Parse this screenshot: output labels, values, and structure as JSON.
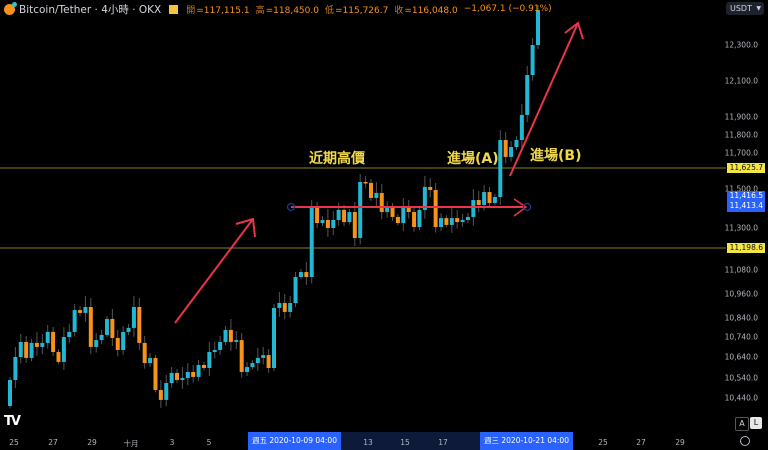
{
  "header": {
    "symbol": "Bitcoin/Tether · 4小時 · OKX",
    "open_label": "開",
    "open": "=117,115.1",
    "high_label": "高",
    "high": "=118,450.0",
    "low_label": "低",
    "low": "=115,726.7",
    "close_label": "收",
    "close": "=116,048.0",
    "change": "−1,067.1 (−0.91%)",
    "currency": "USDT"
  },
  "colors": {
    "up": "#22b8d4",
    "down": "#f7931a",
    "level_line": "#8b7e1c",
    "annotation": "#e8354a",
    "text_note": "#f0d84a",
    "crosshair_label": "#2962ff"
  },
  "y_ticks": [
    "12,300.0",
    "12,100.0",
    "11,900.0",
    "11,800.0",
    "11,700.0",
    "11,500.0",
    "11,300.0",
    "11,080.0",
    "10,960.0",
    "10,840.0",
    "10,740.0",
    "10,640.0",
    "10,540.0",
    "10,440.0"
  ],
  "price_labels": {
    "resistance": "11,625.7",
    "support": "11,198.6",
    "cross_1": "11,416.5",
    "cross_2": "11,413.4"
  },
  "x_ticks": [
    "25",
    "27",
    "29",
    "十月",
    "3",
    "5",
    "13",
    "15",
    "17",
    "25",
    "27",
    "29"
  ],
  "x_crosshair": {
    "start": "週五 2020-10-09   04:00",
    "end": "週三 2020-10-21   04:00"
  },
  "annotations": {
    "recent_high": "近期高價",
    "entry_a": "進場(A)",
    "entry_b": "進場(B)"
  },
  "buttons": {
    "auto": "A",
    "log": "L"
  },
  "chart_data": {
    "type": "candlestick",
    "timeframe": "4小時",
    "ylim": [
      10350,
      12400
    ],
    "first_open": 10400,
    "closes": [
      10537,
      10658,
      10737,
      10653,
      10732,
      10711,
      10732,
      10790,
      10684,
      10632,
      10763,
      10790,
      10905,
      10890,
      10921,
      10711,
      10747,
      10774,
      10858,
      10758,
      10695,
      10790,
      10811,
      10921,
      10732,
      10626,
      10653,
      10484,
      10432,
      10521,
      10574,
      10537,
      10547,
      10579,
      10553,
      10616,
      10600,
      10684,
      10695,
      10737,
      10800,
      10737,
      10747,
      10579,
      10605,
      10626,
      10653,
      10668,
      10600,
      10916,
      10942,
      10895,
      10942,
      11079,
      11105,
      11079,
      11442,
      11363,
      11379,
      11337,
      11379,
      11432,
      11368,
      11421,
      11284,
      11579,
      11574,
      11495,
      11521,
      11421,
      11442,
      11395,
      11363,
      11442,
      11421,
      11342,
      11432,
      11553,
      11537,
      11342,
      11389,
      11353,
      11389,
      11368,
      11379,
      11395,
      11484,
      11458,
      11526,
      11468,
      11500,
      11800,
      11711,
      11763,
      11800,
      11932,
      12142,
      12300,
      12484
    ],
    "horizontal_levels": [
      11625.7,
      11198.6
    ],
    "range_line_price": 11416
  }
}
